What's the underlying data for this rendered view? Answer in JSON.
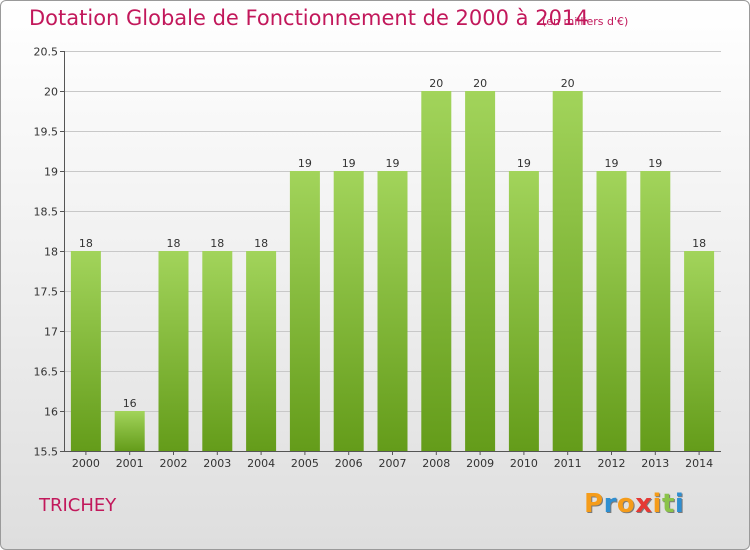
{
  "title": "Dotation Globale de Fonctionnement de 2000 à 2014",
  "subtitle": "(en milliers d'€)",
  "commune": "TRICHEY",
  "brand": {
    "text": "Proxiti",
    "letters": [
      "P",
      "r",
      "o",
      "x",
      "i",
      "t",
      "i"
    ],
    "colors": [
      "#f59c1a",
      "#2f8fd1",
      "#f59c1a",
      "#e53935",
      "#f59c1a",
      "#8bc34a",
      "#2f8fd1"
    ]
  },
  "colors": {
    "bar_light": "#a2d45b",
    "bar_dark": "#649c1a",
    "title": "#c2185b",
    "grid": "#c8c8c8"
  },
  "chart_data": {
    "type": "bar",
    "title": "Dotation Globale de Fonctionnement de 2000 à 2014",
    "unit": "(en milliers d'€)",
    "xlabel": "",
    "ylabel": "",
    "categories": [
      "2000",
      "2001",
      "2002",
      "2003",
      "2004",
      "2005",
      "2006",
      "2007",
      "2008",
      "2009",
      "2010",
      "2011",
      "2012",
      "2013",
      "2014"
    ],
    "values": [
      18,
      16,
      18,
      18,
      18,
      19,
      19,
      19,
      20,
      20,
      19,
      20,
      19,
      19,
      18
    ],
    "ylim": [
      15.5,
      20.5
    ],
    "yticks": [
      "15.5",
      "16",
      "16.5",
      "17",
      "17.5",
      "18",
      "18.5",
      "19",
      "19.5",
      "20",
      "20.5"
    ],
    "grid": true
  }
}
